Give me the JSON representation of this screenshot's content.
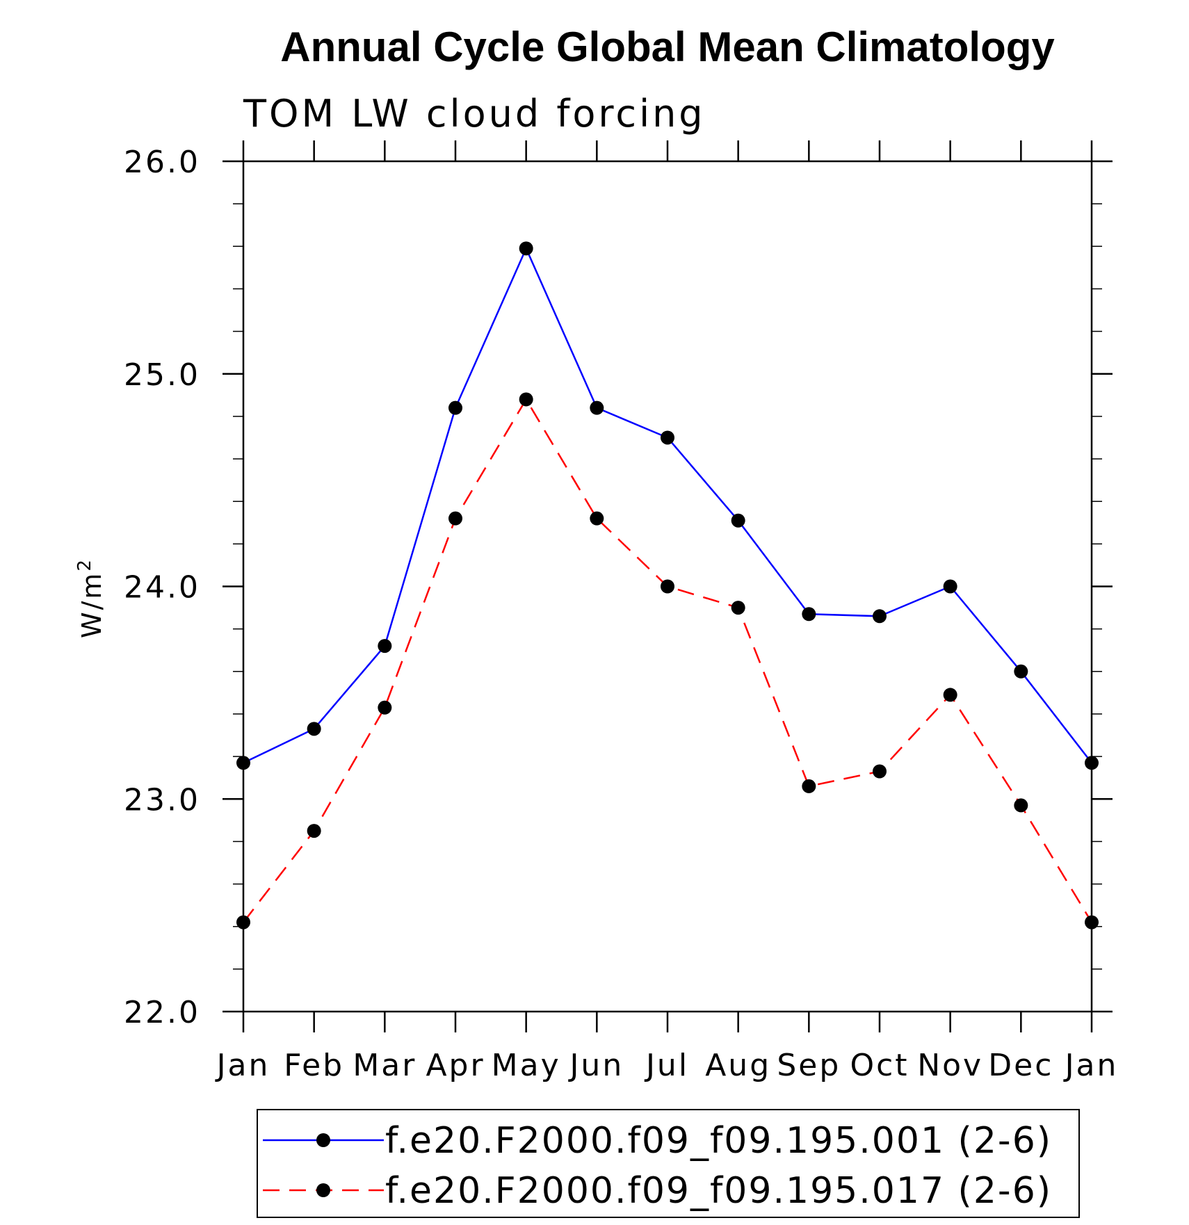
{
  "chart_data": {
    "type": "line",
    "title": "Annual Cycle Global Mean Climatology",
    "subtitle": "TOM LW cloud forcing",
    "ylabel": "W/m",
    "ylabel_superscript": "2",
    "xlabel": "",
    "categories": [
      "Jan",
      "Feb",
      "Mar",
      "Apr",
      "May",
      "Jun",
      "Jul",
      "Aug",
      "Sep",
      "Oct",
      "Nov",
      "Dec",
      "Jan"
    ],
    "ylim": [
      22.0,
      26.0
    ],
    "yticks": [
      "22.0",
      "23.0",
      "24.0",
      "25.0",
      "26.0"
    ],
    "grid": false,
    "legend_position": "bottom",
    "series": [
      {
        "name": "f.e20.F2000.f09_f09.195.001 (2-6)",
        "color": "#0000ff",
        "dash": "solid",
        "values": [
          23.17,
          23.33,
          23.72,
          24.84,
          25.59,
          24.84,
          24.7,
          24.31,
          23.87,
          23.86,
          24.0,
          23.6,
          23.17
        ]
      },
      {
        "name": "f.e20.F2000.f09_f09.195.017 (2-6)",
        "color": "#ff0000",
        "dash": "dashed",
        "values": [
          22.42,
          22.85,
          23.43,
          24.32,
          24.88,
          24.32,
          24.0,
          23.9,
          23.06,
          23.13,
          23.49,
          22.97,
          22.42
        ]
      }
    ]
  }
}
